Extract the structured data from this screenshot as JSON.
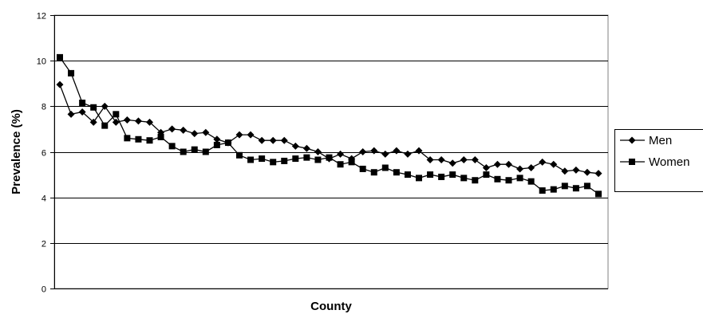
{
  "chart_data": {
    "type": "line",
    "title": "",
    "xlabel": "County",
    "ylabel": "Prevalence (%)",
    "ylim": [
      0,
      12
    ],
    "yticks": [
      0,
      2,
      4,
      6,
      8,
      10,
      12
    ],
    "grid": "horizontal",
    "legend_position": "right",
    "series": [
      {
        "name": "Men",
        "marker": "diamond",
        "values": [
          8.95,
          7.65,
          7.75,
          7.3,
          8.0,
          7.3,
          7.4,
          7.35,
          7.3,
          6.85,
          7.0,
          6.95,
          6.8,
          6.85,
          6.55,
          6.4,
          6.75,
          6.75,
          6.5,
          6.5,
          6.5,
          6.25,
          6.15,
          6.0,
          5.7,
          5.9,
          5.7,
          6.0,
          6.05,
          5.9,
          6.05,
          5.9,
          6.05,
          5.65,
          5.65,
          5.5,
          5.65,
          5.65,
          5.3,
          5.45,
          5.45,
          5.25,
          5.3,
          5.55,
          5.45,
          5.15,
          5.2,
          5.1,
          5.05
        ]
      },
      {
        "name": "Women",
        "marker": "square",
        "values": [
          10.15,
          9.45,
          8.15,
          7.95,
          7.15,
          7.65,
          6.6,
          6.55,
          6.5,
          6.65,
          6.25,
          6.0,
          6.1,
          6.0,
          6.3,
          6.4,
          5.85,
          5.65,
          5.7,
          5.55,
          5.6,
          5.7,
          5.75,
          5.65,
          5.75,
          5.45,
          5.55,
          5.25,
          5.1,
          5.3,
          5.1,
          5.0,
          4.85,
          5.0,
          4.9,
          5.0,
          4.85,
          4.75,
          5.0,
          4.8,
          4.75,
          4.85,
          4.7,
          4.3,
          4.35,
          4.5,
          4.4,
          4.5,
          4.15
        ]
      }
    ]
  },
  "colors": {
    "series_color": "#000000",
    "grid_color": "#000000",
    "plot_border": "#808080"
  }
}
